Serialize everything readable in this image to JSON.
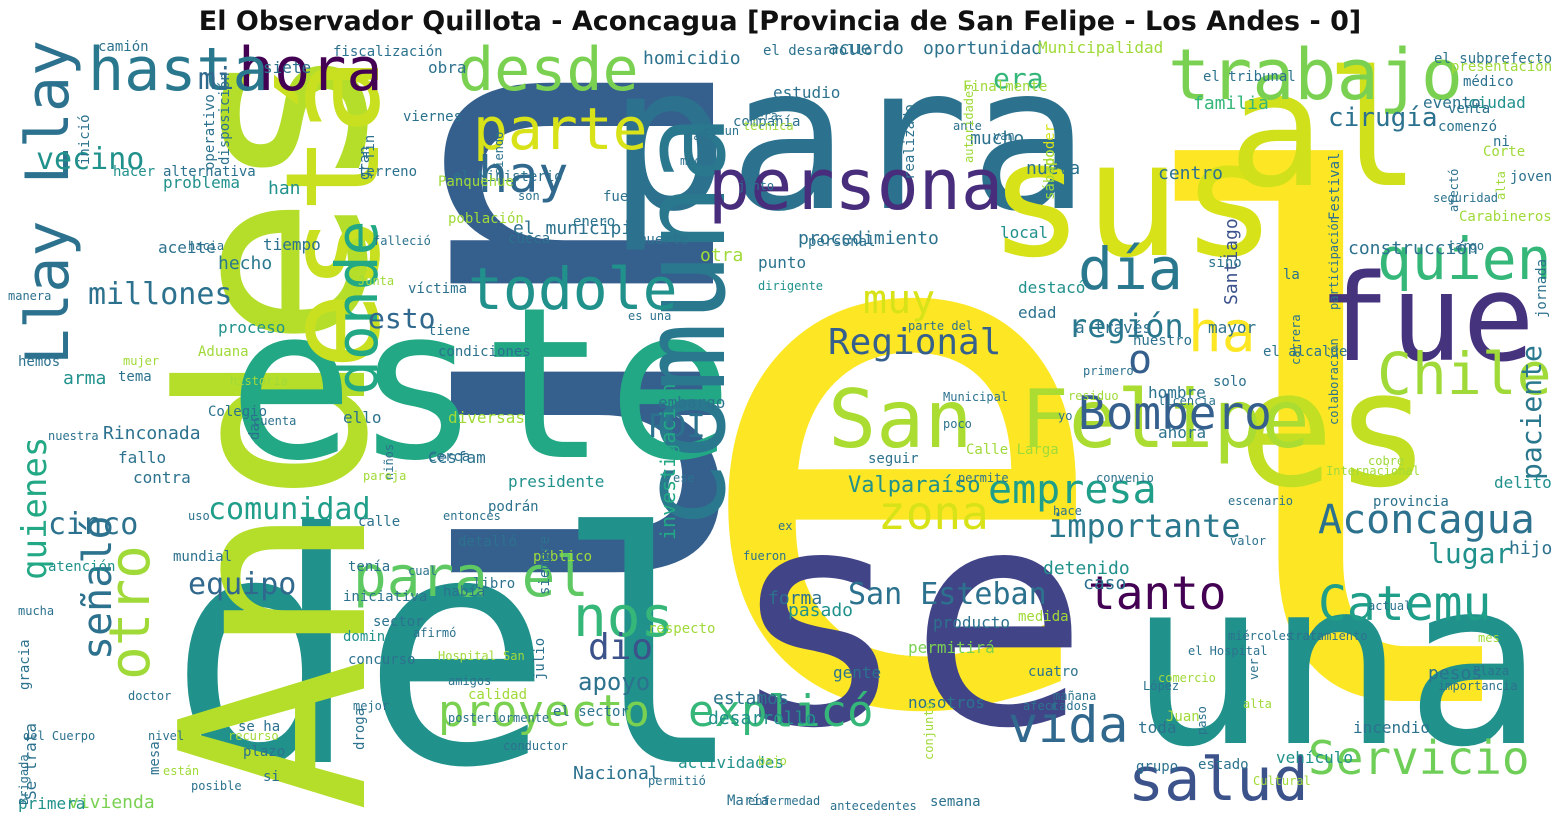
{
  "title": "El Observador Quillota - Aconcagua [Provincia de San Felipe - Los Andes - 0]",
  "colors": {
    "background": "#ffffff",
    "title": "#111111",
    "palette": "viridis"
  },
  "words": [
    {
      "text": "el",
      "color": "#fde725"
    },
    {
      "text": "un",
      "color": "#355f8d"
    },
    {
      "text": "del",
      "color": "#21918c"
    },
    {
      "text": "se",
      "color": "#414487"
    },
    {
      "text": "para",
      "color": "#2c728e"
    },
    {
      "text": "Andes",
      "color": "#b5de2b"
    },
    {
      "text": "este",
      "color": "#22a884"
    },
    {
      "text": "una",
      "color": "#21918c"
    },
    {
      "text": "sus",
      "color": "#d8e219"
    },
    {
      "text": "es",
      "color": "#c2df23"
    },
    {
      "text": "comuna",
      "color": "#2a788e"
    },
    {
      "text": "al",
      "color": "#d0e11c"
    },
    {
      "text": "está",
      "color": "#c8e020"
    },
    {
      "text": "fue",
      "color": "#46337e"
    },
    {
      "text": "San Felipe",
      "color": "#aadc32"
    },
    {
      "text": "persona",
      "color": "#472d7b"
    },
    {
      "text": "trabajo",
      "color": "#7ad151"
    },
    {
      "text": "hora",
      "color": "#440154"
    },
    {
      "text": "desde",
      "color": "#7ad151"
    },
    {
      "text": "hasta",
      "color": "#2a788e"
    },
    {
      "text": "parte",
      "color": "#d8e219"
    },
    {
      "text": "donde",
      "color": "#22a884"
    },
    {
      "text": "todole",
      "color": "#21918c"
    },
    {
      "text": "Llay Llay",
      "color": "#2c728e"
    },
    {
      "text": "día",
      "color": "#2a788e"
    },
    {
      "text": "quien",
      "color": "#35b779"
    },
    {
      "text": "Chile",
      "color": "#a0da39"
    },
    {
      "text": "ha",
      "color": "#fde725"
    },
    {
      "text": "Bombero",
      "color": "#355f8d"
    },
    {
      "text": "Aconcagua",
      "color": "#2c728e"
    },
    {
      "text": "Servicio",
      "color": "#6ece58"
    },
    {
      "text": "salud",
      "color": "#3b528b"
    },
    {
      "text": "vida",
      "color": "#31688e"
    },
    {
      "text": "Catemu",
      "color": "#1f9e89"
    },
    {
      "text": "tanto",
      "color": "#440154"
    },
    {
      "text": "para el",
      "color": "#5ec962"
    },
    {
      "text": "nos",
      "color": "#35b779"
    },
    {
      "text": "proyecto",
      "color": "#7ad151"
    },
    {
      "text": "explicó",
      "color": "#35b779"
    },
    {
      "text": "empresa",
      "color": "#1f9e89"
    },
    {
      "text": "zona",
      "color": "#d8e219"
    },
    {
      "text": "importante",
      "color": "#2a788e"
    },
    {
      "text": "hay",
      "color": "#31688e"
    },
    {
      "text": "muy",
      "color": "#d8e219"
    },
    {
      "text": "Regional",
      "color": "#355f8d"
    },
    {
      "text": "región",
      "color": "#2a788e"
    },
    {
      "text": "o",
      "color": "#355f8d"
    },
    {
      "text": "millones",
      "color": "#2c728e"
    },
    {
      "text": "otro",
      "color": "#a0da39"
    },
    {
      "text": "señaló",
      "color": "#2c728e"
    },
    {
      "text": "quienes",
      "color": "#22a884"
    },
    {
      "text": "comunidad",
      "color": "#1f9e89"
    },
    {
      "text": "San Esteban",
      "color": "#2c728e"
    },
    {
      "text": "equipo",
      "color": "#31688e"
    },
    {
      "text": "cinco",
      "color": "#2c728e"
    },
    {
      "text": "vecino",
      "color": "#21918c"
    },
    {
      "text": "mi",
      "color": "#31688e"
    },
    {
      "text": "esto",
      "color": "#31688e"
    },
    {
      "text": "era",
      "color": "#35b779"
    },
    {
      "text": "paciente",
      "color": "#2a788e"
    },
    {
      "text": "cirugía",
      "color": "#2c728e"
    },
    {
      "text": "lugar",
      "color": "#21918c"
    },
    {
      "text": "dio",
      "color": "#3b528b"
    },
    {
      "text": "PDI",
      "color": "#2c728e"
    },
    {
      "text": "apoyo",
      "color": "#2c728e"
    },
    {
      "text": "Valparaíso",
      "color": "#21918c"
    },
    {
      "text": "investigación",
      "color": "#22a884"
    },
    {
      "text": "procedimiento",
      "color": "#2c728e"
    },
    {
      "text": "construcción",
      "color": "#2c728e"
    },
    {
      "text": "Rinconada",
      "color": "#2c728e"
    },
    {
      "text": "Santiago",
      "color": "#3b528b"
    },
    {
      "text": "centro",
      "color": "#2c728e"
    },
    {
      "text": "nueva",
      "color": "#2c728e"
    },
    {
      "text": "familia",
      "color": "#35b779"
    },
    {
      "text": "arma",
      "color": "#21918c"
    },
    {
      "text": "hecho",
      "color": "#2a788e"
    },
    {
      "text": "han",
      "color": "#21918c"
    },
    {
      "text": "pasado",
      "color": "#21918c"
    },
    {
      "text": "forma",
      "color": "#2c728e"
    },
    {
      "text": "estamos",
      "color": "#2c728e"
    },
    {
      "text": "Nacional",
      "color": "#2c728e"
    },
    {
      "text": "vivienda",
      "color": "#7ad151"
    },
    {
      "text": "caso",
      "color": "#2c728e"
    },
    {
      "text": "detenido",
      "color": "#21918c"
    },
    {
      "text": "pesos",
      "color": "#2c728e"
    },
    {
      "text": "hijo",
      "color": "#2c728e"
    },
    {
      "text": "homicidio",
      "color": "#2c728e"
    },
    {
      "text": "acuerdo",
      "color": "#2c728e"
    },
    {
      "text": "oportunidad",
      "color": "#2c728e"
    },
    {
      "text": "Municipalidad",
      "color": "#a0da39"
    },
    {
      "text": "estudio",
      "color": "#2c728e"
    },
    {
      "text": "obra",
      "color": "#2c728e"
    },
    {
      "text": "siete",
      "color": "#2c728e"
    },
    {
      "text": "evento",
      "color": "#2c728e"
    },
    {
      "text": "ciudad",
      "color": "#21918c"
    },
    {
      "text": "mucho",
      "color": "#2c728e"
    },
    {
      "text": "toda",
      "color": "#2c728e"
    },
    {
      "text": "ahora",
      "color": "#2c728e"
    },
    {
      "text": "hombre",
      "color": "#2c728e"
    },
    {
      "text": "mayor",
      "color": "#2c728e"
    },
    {
      "text": "contra",
      "color": "#2c728e"
    },
    {
      "text": "fallo",
      "color": "#2c728e"
    },
    {
      "text": "ello",
      "color": "#2c728e"
    },
    {
      "text": "diversas",
      "color": "#a0da39"
    },
    {
      "text": "presidente",
      "color": "#21918c"
    },
    {
      "text": "Cesfam",
      "color": "#2c728e"
    },
    {
      "text": "proceso",
      "color": "#21918c"
    },
    {
      "text": "problema",
      "color": "#21918c"
    },
    {
      "text": "tiempo",
      "color": "#2c728e"
    },
    {
      "text": "aceite",
      "color": "#2c728e"
    },
    {
      "text": "el municipio",
      "color": "#2c728e"
    },
    {
      "text": "otra",
      "color": "#a0da39"
    },
    {
      "text": "punto",
      "color": "#2c728e"
    },
    {
      "text": "local",
      "color": "#21918c"
    },
    {
      "text": "destacó",
      "color": "#21918c"
    },
    {
      "text": "a través",
      "color": "#2c728e"
    },
    {
      "text": "edad",
      "color": "#2c728e"
    },
    {
      "text": "actividades",
      "color": "#21918c"
    },
    {
      "text": "desarrollo",
      "color": "#21918c"
    },
    {
      "text": "nosotros",
      "color": "#2c728e"
    },
    {
      "text": "gente",
      "color": "#2c728e"
    },
    {
      "text": "permitirá",
      "color": "#7ad151"
    },
    {
      "text": "producto",
      "color": "#2c728e"
    },
    {
      "text": "embargo",
      "color": "#2c728e"
    },
    {
      "text": "delito",
      "color": "#21918c"
    },
    {
      "text": "incendio",
      "color": "#2c728e"
    },
    {
      "text": "vehículo",
      "color": "#21918c"
    },
    {
      "text": "grupo",
      "color": "#2c728e"
    },
    {
      "text": "estado",
      "color": "#2c728e"
    },
    {
      "text": "semana",
      "color": "#2c728e"
    },
    {
      "text": "María",
      "color": "#2c728e"
    },
    {
      "text": "primera",
      "color": "#21918c"
    },
    {
      "text": "Se trata",
      "color": "#2c728e"
    },
    {
      "text": "gracia",
      "color": "#2c728e"
    },
    {
      "text": "atención",
      "color": "#21918c"
    },
    {
      "text": "nuestro",
      "color": "#2c728e"
    },
    {
      "text": "el alcalde",
      "color": "#2c728e"
    },
    {
      "text": "la",
      "color": "#2c728e"
    },
    {
      "text": "jornada",
      "color": "#2c728e"
    },
    {
      "text": "Carabineros",
      "color": "#a0da39"
    },
    {
      "text": "Corte",
      "color": "#a0da39"
    },
    {
      "text": "joven",
      "color": "#2c728e"
    },
    {
      "text": "sino",
      "color": "#2c728e"
    },
    {
      "text": "solo",
      "color": "#2c728e"
    },
    {
      "text": "víctima",
      "color": "#2c728e"
    },
    {
      "text": "tiene",
      "color": "#2c728e"
    },
    {
      "text": "condiciones",
      "color": "#2c728e"
    },
    {
      "text": "el Ministerio",
      "color": "#2c728e"
    },
    {
      "text": "camión",
      "color": "#2c728e"
    },
    {
      "text": "fiscalización",
      "color": "#2c728e"
    },
    {
      "text": "el desarrollo",
      "color": "#2c728e"
    },
    {
      "text": "Finalmente",
      "color": "#a0da39"
    },
    {
      "text": "el tribunal",
      "color": "#2c728e"
    },
    {
      "text": "médico",
      "color": "#2c728e"
    },
    {
      "text": "el subprefecto",
      "color": "#2c728e"
    },
    {
      "text": "presentación",
      "color": "#a0da39"
    },
    {
      "text": "venta",
      "color": "#2c728e"
    },
    {
      "text": "comenzó",
      "color": "#2c728e"
    },
    {
      "text": "ni",
      "color": "#2c728e"
    },
    {
      "text": "inició",
      "color": "#2c728e"
    },
    {
      "text": "hacer",
      "color": "#21918c"
    },
    {
      "text": "operativo",
      "color": "#2c728e"
    },
    {
      "text": "alternativa",
      "color": "#2c728e"
    },
    {
      "text": "gran",
      "color": "#2c728e"
    },
    {
      "text": "fin",
      "color": "#2c728e"
    },
    {
      "text": "disposición",
      "color": "#2c728e"
    },
    {
      "text": "viernes",
      "color": "#2c728e"
    },
    {
      "text": "compañía",
      "color": "#2c728e"
    },
    {
      "text": "será",
      "color": "#2c728e"
    },
    {
      "text": "es un",
      "color": "#2c728e"
    },
    {
      "text": "técnica",
      "color": "#a0da39"
    },
    {
      "text": "medio",
      "color": "#2c728e"
    },
    {
      "text": "cabo",
      "color": "#2c728e"
    },
    {
      "text": "realizado",
      "color": "#2c728e"
    },
    {
      "text": "ante",
      "color": "#2c728e"
    },
    {
      "text": "poder",
      "color": "#d8e219"
    },
    {
      "text": "van",
      "color": "#2c728e"
    },
    {
      "text": "autoridades",
      "color": "#a0da39"
    },
    {
      "text": "sábado",
      "color": "#a0da39"
    },
    {
      "text": "junto",
      "color": "#2c728e"
    },
    {
      "text": "Panquehue",
      "color": "#a0da39"
    },
    {
      "text": "siendo",
      "color": "#2c728e"
    },
    {
      "text": "son",
      "color": "#2c728e"
    },
    {
      "text": "población",
      "color": "#a0da39"
    },
    {
      "text": "fuego",
      "color": "#2c728e"
    },
    {
      "text": "enero",
      "color": "#2c728e"
    },
    {
      "text": "cueca",
      "color": "#2c728e"
    },
    {
      "text": "muerte",
      "color": "#2c728e"
    },
    {
      "text": "personal",
      "color": "#2c728e"
    },
    {
      "text": "dirigente",
      "color": "#21918c"
    },
    {
      "text": "Junta",
      "color": "#a0da39"
    },
    {
      "text": "falleció",
      "color": "#2c728e"
    },
    {
      "text": "manera",
      "color": "#2c728e"
    },
    {
      "text": "hacia",
      "color": "#2c728e"
    },
    {
      "text": "terreno",
      "color": "#2c728e"
    },
    {
      "text": "hemos",
      "color": "#2c728e"
    },
    {
      "text": "mujer",
      "color": "#a0da39"
    },
    {
      "text": "Aduana",
      "color": "#a0da39"
    },
    {
      "text": "tema",
      "color": "#2c728e"
    },
    {
      "text": "historia",
      "color": "#a0da39"
    },
    {
      "text": "Colegio",
      "color": "#2c728e"
    },
    {
      "text": "cuenta",
      "color": "#2c728e"
    },
    {
      "text": "nuestra",
      "color": "#2c728e"
    },
    {
      "text": "dar",
      "color": "#2c728e"
    },
    {
      "text": "niños",
      "color": "#2c728e"
    },
    {
      "text": "cerca",
      "color": "#2c728e"
    },
    {
      "text": "podrán",
      "color": "#2c728e"
    },
    {
      "text": "entonces",
      "color": "#2c728e"
    },
    {
      "text": "detalló",
      "color": "#2c728e"
    },
    {
      "text": "pareja",
      "color": "#a0da39"
    },
    {
      "text": "uso",
      "color": "#2c728e"
    },
    {
      "text": "calle",
      "color": "#2c728e"
    },
    {
      "text": "libro",
      "color": "#2c728e"
    },
    {
      "text": "cual",
      "color": "#2c728e"
    },
    {
      "text": "público",
      "color": "#a0da39"
    },
    {
      "text": "mundial",
      "color": "#2c728e"
    },
    {
      "text": "tenía",
      "color": "#2c728e"
    },
    {
      "text": "iniciativa",
      "color": "#2c728e"
    },
    {
      "text": "Hospital San",
      "color": "#a0da39"
    },
    {
      "text": "había",
      "color": "#2c728e"
    },
    {
      "text": "sector",
      "color": "#2c728e"
    },
    {
      "text": "siempre",
      "color": "#2c728e"
    },
    {
      "text": "mucha",
      "color": "#2c728e"
    },
    {
      "text": "afirmó",
      "color": "#2c728e"
    },
    {
      "text": "domingo",
      "color": "#21918c"
    },
    {
      "text": "concurso",
      "color": "#2c728e"
    },
    {
      "text": "amigos",
      "color": "#2c728e"
    },
    {
      "text": "julio",
      "color": "#2c728e"
    },
    {
      "text": "calidad",
      "color": "#a0da39"
    },
    {
      "text": "posteriormente",
      "color": "#2c728e"
    },
    {
      "text": "el sector",
      "color": "#2c728e"
    },
    {
      "text": "se ha",
      "color": "#2c728e"
    },
    {
      "text": "plazo",
      "color": "#2c728e"
    },
    {
      "text": "mejor",
      "color": "#2c728e"
    },
    {
      "text": "recurso",
      "color": "#a0da39"
    },
    {
      "text": "doctor",
      "color": "#2c728e"
    },
    {
      "text": "del Cuerpo",
      "color": "#2c728e"
    },
    {
      "text": "Brigada",
      "color": "#2c728e"
    },
    {
      "text": "mesa",
      "color": "#2c728e"
    },
    {
      "text": "nivel",
      "color": "#2c728e"
    },
    {
      "text": "están",
      "color": "#a0da39"
    },
    {
      "text": "posible",
      "color": "#2c728e"
    },
    {
      "text": "si",
      "color": "#2c728e"
    },
    {
      "text": "droga",
      "color": "#2c728e"
    },
    {
      "text": "conductor",
      "color": "#2c728e"
    },
    {
      "text": "permitió",
      "color": "#2c728e"
    },
    {
      "text": "bajo",
      "color": "#a0da39"
    },
    {
      "text": "enfermedad",
      "color": "#2c728e"
    },
    {
      "text": "antecedentes",
      "color": "#2c728e"
    },
    {
      "text": "conjunto",
      "color": "#a0da39"
    },
    {
      "text": "respecto",
      "color": "#a0da39"
    },
    {
      "text": "medida",
      "color": "#a0da39"
    },
    {
      "text": "parte del",
      "color": "#2c728e"
    },
    {
      "text": "es una",
      "color": "#2c728e"
    },
    {
      "text": "seguir",
      "color": "#2c728e"
    },
    {
      "text": "Calle Larga",
      "color": "#a0da39"
    },
    {
      "text": "permite",
      "color": "#2c728e"
    },
    {
      "text": "ese",
      "color": "#2c728e"
    },
    {
      "text": "ex",
      "color": "#2c728e"
    },
    {
      "text": "fueron",
      "color": "#2c728e"
    },
    {
      "text": "convenio",
      "color": "#2c728e"
    },
    {
      "text": "licencia",
      "color": "#2c728e"
    },
    {
      "text": "escenario",
      "color": "#2c728e"
    },
    {
      "text": "valor",
      "color": "#2c728e"
    },
    {
      "text": "provincia",
      "color": "#2c728e"
    },
    {
      "text": "Internacional",
      "color": "#a0da39"
    },
    {
      "text": "cobre",
      "color": "#a0da39"
    },
    {
      "text": "colaboración",
      "color": "#2c728e"
    },
    {
      "text": "participación",
      "color": "#2c728e"
    },
    {
      "text": "Festival",
      "color": "#2c728e"
    },
    {
      "text": "carrera",
      "color": "#2c728e"
    },
    {
      "text": "afectó",
      "color": "#2c728e"
    },
    {
      "text": "seguridad",
      "color": "#2c728e"
    },
    {
      "text": "alta",
      "color": "#a0da39"
    },
    {
      "text": "cargo",
      "color": "#2c728e"
    },
    {
      "text": "actual",
      "color": "#2c728e"
    },
    {
      "text": "primero",
      "color": "#2c728e"
    },
    {
      "text": "residuo",
      "color": "#a0da39"
    },
    {
      "text": "yo",
      "color": "#2c728e"
    },
    {
      "text": "Municipal",
      "color": "#2c728e"
    },
    {
      "text": "poco",
      "color": "#2c728e"
    },
    {
      "text": "hace",
      "color": "#2c728e"
    },
    {
      "text": "el Hospital",
      "color": "#2c728e"
    },
    {
      "text": "miércoles",
      "color": "#2c728e"
    },
    {
      "text": "tratamiento",
      "color": "#2c728e"
    },
    {
      "text": "comercio",
      "color": "#a0da39"
    },
    {
      "text": "alta",
      "color": "#a0da39"
    },
    {
      "text": "mes",
      "color": "#a0da39"
    },
    {
      "text": "Plaza",
      "color": "#2c728e"
    },
    {
      "text": "importancia",
      "color": "#2c728e"
    },
    {
      "text": "paso",
      "color": "#2c728e"
    },
    {
      "text": "ver",
      "color": "#2c728e"
    },
    {
      "text": "Juan",
      "color": "#a0da39"
    },
    {
      "text": "López",
      "color": "#2c728e"
    },
    {
      "text": "cuatro",
      "color": "#2c728e"
    },
    {
      "text": "mañana",
      "color": "#2c728e"
    },
    {
      "text": "afectados",
      "color": "#2c728e"
    },
    {
      "text": "Cultural",
      "color": "#a0da39"
    }
  ]
}
